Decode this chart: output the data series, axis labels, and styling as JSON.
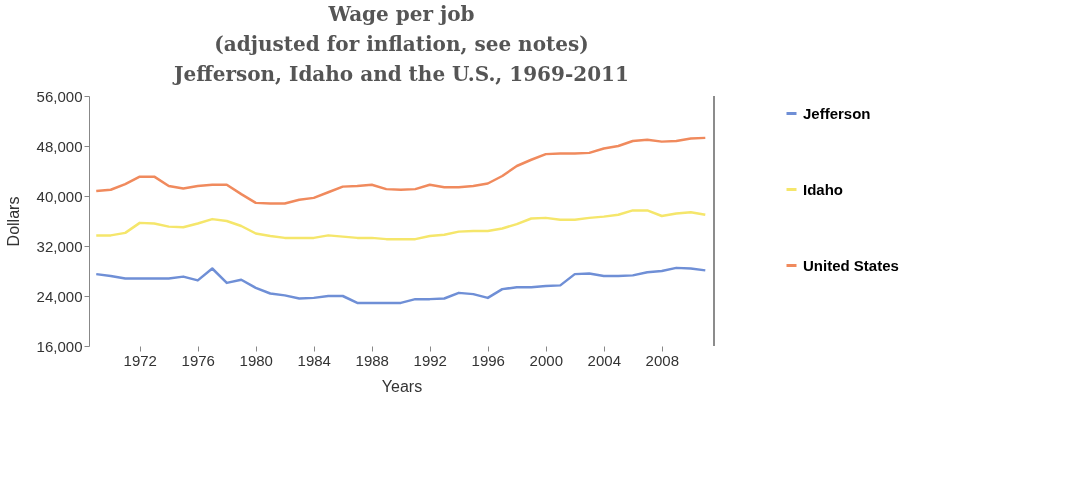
{
  "chart_data": {
    "type": "line",
    "title": "Wage per job\n(adjusted for inflation, see notes)\nJefferson, Idaho and the U.S., 1969-2011",
    "xlabel": "Years",
    "ylabel": "Dollars",
    "x": [
      1969,
      1970,
      1971,
      1972,
      1973,
      1974,
      1975,
      1976,
      1977,
      1978,
      1979,
      1980,
      1981,
      1982,
      1983,
      1984,
      1985,
      1986,
      1987,
      1988,
      1989,
      1990,
      1991,
      1992,
      1993,
      1994,
      1995,
      1996,
      1997,
      1998,
      1999,
      2000,
      2001,
      2002,
      2003,
      2004,
      2005,
      2006,
      2007,
      2008,
      2009,
      2010,
      2011
    ],
    "series": [
      {
        "name": "Jefferson",
        "color": "#6f8fd6",
        "values": [
          27500,
          27200,
          26800,
          26800,
          26800,
          26800,
          27100,
          26500,
          28400,
          26100,
          26600,
          25300,
          24400,
          24100,
          23600,
          23700,
          24000,
          24000,
          22900,
          22900,
          22900,
          22900,
          23500,
          23500,
          23600,
          24500,
          24300,
          23700,
          25100,
          25400,
          25400,
          25600,
          25700,
          27500,
          27600,
          27200,
          27200,
          27300,
          27800,
          28000,
          28500,
          28400,
          28100
        ]
      },
      {
        "name": "Idaho",
        "color": "#f5e66b",
        "values": [
          33700,
          33700,
          34100,
          35700,
          35600,
          35100,
          35000,
          35600,
          36300,
          36000,
          35200,
          34000,
          33600,
          33300,
          33300,
          33300,
          33700,
          33500,
          33300,
          33300,
          33100,
          33100,
          33100,
          33600,
          33800,
          34300,
          34400,
          34400,
          34800,
          35500,
          36400,
          36500,
          36200,
          36200,
          36500,
          36700,
          37000,
          37700,
          37700,
          36800,
          37200,
          37400,
          37000
        ]
      },
      {
        "name": "United States",
        "color": "#f08a5d",
        "values": [
          40800,
          41000,
          41900,
          43100,
          43100,
          41600,
          41200,
          41600,
          41800,
          41800,
          40300,
          38900,
          38800,
          38800,
          39400,
          39700,
          40600,
          41500,
          41600,
          41800,
          41100,
          41000,
          41100,
          41800,
          41400,
          41400,
          41600,
          42000,
          43200,
          44800,
          45800,
          46700,
          46800,
          46800,
          46900,
          47600,
          48000,
          48800,
          49000,
          48700,
          48800,
          49200,
          49300
        ]
      }
    ],
    "xlim": [
      1968.5,
      2011.6
    ],
    "xticks": [
      1972,
      1976,
      1980,
      1984,
      1988,
      1992,
      1996,
      2000,
      2004,
      2008
    ],
    "ylim": [
      16000,
      56000
    ],
    "yticks": [
      {
        "value": 16000,
        "label": "16,000"
      },
      {
        "value": 24000,
        "label": "24,000"
      },
      {
        "value": 32000,
        "label": "32,000"
      },
      {
        "value": 40000,
        "label": "40,000"
      },
      {
        "value": 48000,
        "label": "48,000"
      },
      {
        "value": 56000,
        "label": "56,000"
      }
    ],
    "grid": false,
    "legend": "right",
    "marker": "none",
    "line_style": "solid"
  }
}
